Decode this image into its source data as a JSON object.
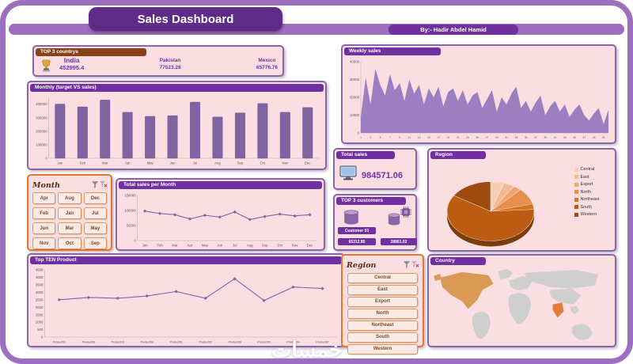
{
  "theme": {
    "frame": "#9c6fc0",
    "title_bg": "#5e2b87",
    "dark_purple": "#70309f",
    "panel_bg": "#fbdee1",
    "panel_border": "#8a66a8",
    "accent_purple": "#8064a2",
    "slicer_orange": "#e8762c",
    "header_brown": "#8a4117",
    "value_purple": "#7030a0"
  },
  "header": {
    "title": "Sales Dashboard",
    "byline": "By:- Hadir Abdel Hamid"
  },
  "top3_countries": {
    "title": "TOP 3 countrys",
    "items": [
      {
        "name": "India",
        "value": "452995.4"
      },
      {
        "name": "Pakistan",
        "value": "77523.28"
      },
      {
        "name": "Mexico",
        "value": "65776.76"
      }
    ]
  },
  "total_sales": {
    "title": "Total sales",
    "value": "984571.06"
  },
  "top3_customers": {
    "title": "TOP 3 customers",
    "customer_label": "Customer 03",
    "value1": "65312.85",
    "value2": "28861.02"
  },
  "month_slicer": {
    "title": "Month",
    "items": [
      "Apr",
      "Aug",
      "Dec",
      "Feb",
      "Jan",
      "Jul",
      "Jun",
      "Mar",
      "May",
      "Nov",
      "Oct",
      "Sep"
    ]
  },
  "region_slicer": {
    "title": "Region",
    "items": [
      "Central",
      "East",
      "Export",
      "North",
      "Northeast",
      "South",
      "Western"
    ]
  },
  "map": {
    "title": "Country"
  },
  "watermark": "خمسات",
  "chart_data": [
    {
      "id": "monthly",
      "type": "bar",
      "title": "Monthly (target VS sales)",
      "categories": [
        "Jan",
        "Feb",
        "Mar",
        "Apr",
        "May",
        "Jun",
        "Jul",
        "Aug",
        "Sep",
        "Oct",
        "Nov",
        "Dec"
      ],
      "values": [
        400000,
        380000,
        430000,
        340000,
        310000,
        315000,
        415000,
        305000,
        335000,
        405000,
        340000,
        375000
      ],
      "ylim": [
        0,
        450000
      ],
      "yticks": [
        0,
        100000,
        200000,
        300000,
        400000
      ],
      "color": "#8064a2",
      "xlabel": "",
      "ylabel": ""
    },
    {
      "id": "total-month",
      "type": "line",
      "title": "Total sales per Month",
      "categories": [
        "Jan",
        "Feb",
        "Mar",
        "Apr",
        "May",
        "Jun",
        "Jul",
        "Aug",
        "Sep",
        "Oct",
        "Nov",
        "Dec"
      ],
      "values": [
        98000,
        90000,
        86000,
        72000,
        84000,
        78000,
        95000,
        70000,
        80000,
        88000,
        82000,
        86000
      ],
      "ylim": [
        0,
        150000
      ],
      "yticks": [
        0,
        50000,
        100000,
        150000
      ],
      "color": "#8064a2",
      "xlabel": "",
      "ylabel": ""
    },
    {
      "id": "topten",
      "type": "line",
      "title": "Top TEN Product",
      "xfont": 3.6,
      "categories": [
        "Product03",
        "Product06",
        "Product10",
        "Product08",
        "Product01",
        "Product02",
        "Product09",
        "Product05",
        "Product04",
        "Product07"
      ],
      "values": [
        2500,
        2650,
        2600,
        2750,
        3050,
        2600,
        3900,
        2450,
        3350,
        3250
      ],
      "ylim": [
        0,
        4500
      ],
      "yticks": [
        0,
        500,
        1000,
        1500,
        2000,
        2500,
        3000,
        3500,
        4000,
        4500
      ],
      "color": "#8064a2",
      "xlabel": "",
      "ylabel": ""
    },
    {
      "id": "weekly",
      "type": "area",
      "title": "Weekly sales",
      "x_start": 1,
      "x_end": 52,
      "values": [
        9000,
        31000,
        16000,
        36000,
        27000,
        21000,
        33000,
        24000,
        28000,
        18000,
        30000,
        22000,
        27000,
        16000,
        25000,
        20000,
        26000,
        15000,
        23000,
        25000,
        18000,
        24000,
        16000,
        21000,
        23000,
        14000,
        19000,
        24000,
        12000,
        20000,
        16000,
        22000,
        26000,
        14000,
        18000,
        12000,
        17000,
        21000,
        10000,
        15000,
        18000,
        12000,
        16000,
        9000,
        13000,
        16000,
        10000,
        7000,
        11000,
        14000,
        5000,
        13000
      ],
      "ylim": [
        0,
        40000
      ],
      "yticks": [
        0,
        10000,
        20000,
        30000,
        40000
      ],
      "color": "#9b7fc0",
      "xlabel": "",
      "ylabel": ""
    },
    {
      "id": "region",
      "type": "pie",
      "title": "Region",
      "legend_position": "right",
      "labels": [
        "Central",
        "East",
        "Export",
        "North",
        "Northeast",
        "South",
        "Western"
      ],
      "values": [
        5,
        4,
        3,
        9,
        3,
        60,
        16
      ],
      "colors": [
        "#f6cdb2",
        "#f2b991",
        "#eda46f",
        "#e88e4d",
        "#d4741f",
        "#bc5c12",
        "#9c4a0e"
      ]
    }
  ]
}
